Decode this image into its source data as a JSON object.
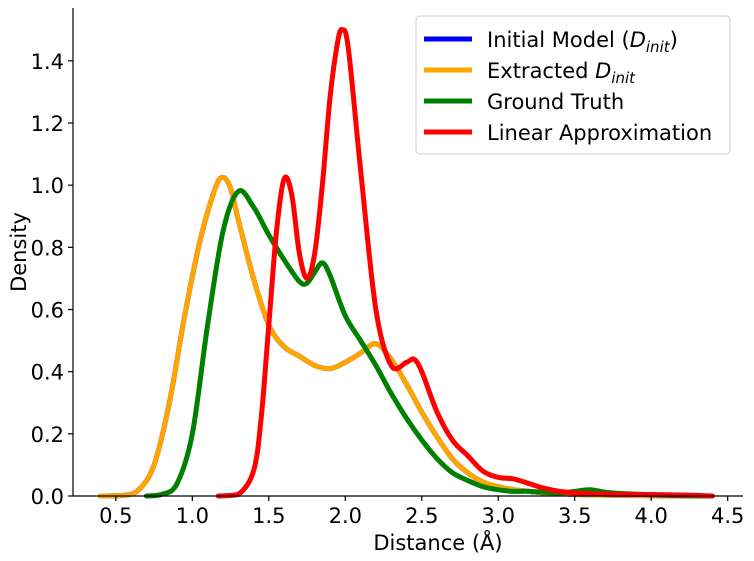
{
  "chart_data": {
    "type": "line",
    "title": "",
    "xlabel": "Distance (Å)",
    "ylabel": "Density",
    "xlim": [
      0.22,
      4.6
    ],
    "ylim": [
      0.0,
      1.57
    ],
    "xticks": [
      0.5,
      1.0,
      1.5,
      2.0,
      2.5,
      3.0,
      3.5,
      4.0,
      4.5
    ],
    "yticks": [
      0.0,
      0.2,
      0.4,
      0.6,
      0.8,
      1.0,
      1.2,
      1.4
    ],
    "xtick_labels": [
      "0.5",
      "1.0",
      "1.5",
      "2.0",
      "2.5",
      "3.0",
      "3.5",
      "4.0",
      "4.5"
    ],
    "ytick_labels": [
      "0.0",
      "0.2",
      "0.4",
      "0.6",
      "0.8",
      "1.0",
      "1.2",
      "1.4"
    ],
    "grid": false,
    "legend_position": "top-right",
    "series": [
      {
        "name": "Initial Model (D_init)",
        "legend": {
          "main": "Initial Model (",
          "italic": "D",
          "sub": "init",
          "tail": ")"
        },
        "color": "#0000ff",
        "points": [
          [
            0.4,
            0.0
          ],
          [
            0.55,
            0.002
          ],
          [
            0.65,
            0.02
          ],
          [
            0.75,
            0.1
          ],
          [
            0.85,
            0.3
          ],
          [
            0.95,
            0.58
          ],
          [
            1.05,
            0.82
          ],
          [
            1.15,
            0.99
          ],
          [
            1.2,
            1.025
          ],
          [
            1.25,
            0.99
          ],
          [
            1.3,
            0.89
          ],
          [
            1.4,
            0.7
          ],
          [
            1.5,
            0.55
          ],
          [
            1.6,
            0.48
          ],
          [
            1.7,
            0.45
          ],
          [
            1.8,
            0.42
          ],
          [
            1.9,
            0.41
          ],
          [
            2.0,
            0.43
          ],
          [
            2.1,
            0.46
          ],
          [
            2.2,
            0.49
          ],
          [
            2.3,
            0.44
          ],
          [
            2.4,
            0.36
          ],
          [
            2.5,
            0.27
          ],
          [
            2.6,
            0.19
          ],
          [
            2.7,
            0.12
          ],
          [
            2.8,
            0.075
          ],
          [
            2.9,
            0.045
          ],
          [
            3.0,
            0.03
          ],
          [
            3.1,
            0.02
          ],
          [
            3.2,
            0.015
          ],
          [
            3.3,
            0.01
          ],
          [
            3.4,
            0.008
          ],
          [
            3.5,
            0.005
          ],
          [
            3.7,
            0.003
          ],
          [
            4.0,
            0.001
          ],
          [
            4.3,
            0.0
          ]
        ]
      },
      {
        "name": "Extracted D_init",
        "legend": {
          "main": "Extracted ",
          "italic": "D",
          "sub": "init",
          "tail": ""
        },
        "color": "#ffa500",
        "points": [
          [
            0.4,
            0.0
          ],
          [
            0.55,
            0.002
          ],
          [
            0.65,
            0.02
          ],
          [
            0.75,
            0.1
          ],
          [
            0.85,
            0.3
          ],
          [
            0.95,
            0.58
          ],
          [
            1.05,
            0.82
          ],
          [
            1.15,
            0.99
          ],
          [
            1.2,
            1.025
          ],
          [
            1.25,
            0.99
          ],
          [
            1.3,
            0.89
          ],
          [
            1.4,
            0.7
          ],
          [
            1.5,
            0.55
          ],
          [
            1.6,
            0.48
          ],
          [
            1.7,
            0.45
          ],
          [
            1.8,
            0.42
          ],
          [
            1.9,
            0.41
          ],
          [
            2.0,
            0.43
          ],
          [
            2.1,
            0.46
          ],
          [
            2.2,
            0.49
          ],
          [
            2.3,
            0.44
          ],
          [
            2.4,
            0.36
          ],
          [
            2.5,
            0.27
          ],
          [
            2.6,
            0.19
          ],
          [
            2.7,
            0.12
          ],
          [
            2.8,
            0.075
          ],
          [
            2.9,
            0.045
          ],
          [
            3.0,
            0.03
          ],
          [
            3.1,
            0.02
          ],
          [
            3.2,
            0.015
          ],
          [
            3.3,
            0.01
          ],
          [
            3.4,
            0.008
          ],
          [
            3.5,
            0.005
          ],
          [
            3.7,
            0.003
          ],
          [
            4.0,
            0.001
          ],
          [
            4.3,
            0.0
          ]
        ]
      },
      {
        "name": "Ground Truth",
        "legend": {
          "main": "Ground Truth",
          "italic": "",
          "sub": "",
          "tail": ""
        },
        "color": "#008000",
        "points": [
          [
            0.7,
            0.0
          ],
          [
            0.8,
            0.005
          ],
          [
            0.9,
            0.04
          ],
          [
            1.0,
            0.2
          ],
          [
            1.1,
            0.55
          ],
          [
            1.2,
            0.85
          ],
          [
            1.3,
            0.98
          ],
          [
            1.4,
            0.93
          ],
          [
            1.5,
            0.84
          ],
          [
            1.6,
            0.76
          ],
          [
            1.7,
            0.69
          ],
          [
            1.75,
            0.685
          ],
          [
            1.8,
            0.72
          ],
          [
            1.85,
            0.75
          ],
          [
            1.9,
            0.71
          ],
          [
            2.0,
            0.58
          ],
          [
            2.1,
            0.5
          ],
          [
            2.2,
            0.42
          ],
          [
            2.3,
            0.33
          ],
          [
            2.4,
            0.25
          ],
          [
            2.5,
            0.18
          ],
          [
            2.6,
            0.12
          ],
          [
            2.7,
            0.075
          ],
          [
            2.8,
            0.05
          ],
          [
            2.9,
            0.03
          ],
          [
            3.0,
            0.02
          ],
          [
            3.1,
            0.015
          ],
          [
            3.2,
            0.015
          ],
          [
            3.3,
            0.012
          ],
          [
            3.4,
            0.01
          ],
          [
            3.5,
            0.015
          ],
          [
            3.6,
            0.02
          ],
          [
            3.7,
            0.012
          ],
          [
            3.8,
            0.008
          ],
          [
            4.0,
            0.004
          ],
          [
            4.2,
            0.001
          ],
          [
            4.4,
            0.0
          ]
        ]
      },
      {
        "name": "Linear Approximation",
        "legend": {
          "main": "Linear Approximation",
          "italic": "",
          "sub": "",
          "tail": ""
        },
        "color": "#ff0000",
        "points": [
          [
            1.17,
            0.0
          ],
          [
            1.3,
            0.005
          ],
          [
            1.4,
            0.08
          ],
          [
            1.45,
            0.25
          ],
          [
            1.5,
            0.55
          ],
          [
            1.55,
            0.85
          ],
          [
            1.6,
            1.02
          ],
          [
            1.65,
            0.97
          ],
          [
            1.7,
            0.78
          ],
          [
            1.75,
            0.7
          ],
          [
            1.8,
            0.78
          ],
          [
            1.85,
            1.0
          ],
          [
            1.9,
            1.28
          ],
          [
            1.95,
            1.46
          ],
          [
            1.98,
            1.5
          ],
          [
            2.02,
            1.44
          ],
          [
            2.1,
            1.05
          ],
          [
            2.2,
            0.6
          ],
          [
            2.3,
            0.42
          ],
          [
            2.4,
            0.43
          ],
          [
            2.45,
            0.44
          ],
          [
            2.5,
            0.4
          ],
          [
            2.6,
            0.27
          ],
          [
            2.7,
            0.18
          ],
          [
            2.8,
            0.13
          ],
          [
            2.9,
            0.08
          ],
          [
            3.0,
            0.06
          ],
          [
            3.1,
            0.055
          ],
          [
            3.2,
            0.04
          ],
          [
            3.3,
            0.025
          ],
          [
            3.4,
            0.015
          ],
          [
            3.5,
            0.01
          ],
          [
            3.7,
            0.006
          ],
          [
            3.9,
            0.005
          ],
          [
            4.1,
            0.004
          ],
          [
            4.3,
            0.002
          ],
          [
            4.4,
            0.0
          ]
        ]
      }
    ]
  }
}
